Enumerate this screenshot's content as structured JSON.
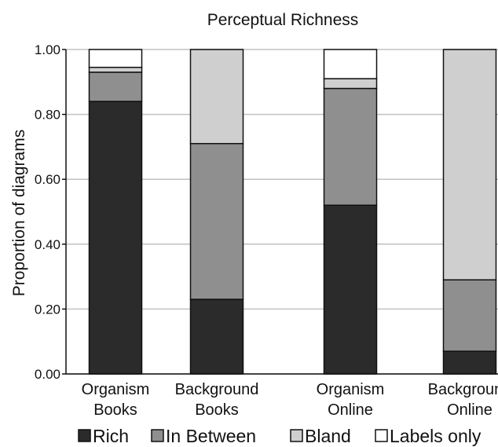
{
  "chart_data": {
    "type": "bar",
    "stacked": true,
    "title": "Perceptual Richness",
    "xlabel": "",
    "ylabel": "Proportion of diagrams",
    "ylim": [
      0,
      1
    ],
    "yticks": [
      "0.00",
      "0.20",
      "0.40",
      "0.60",
      "0.80",
      "1.00"
    ],
    "grid": true,
    "legend_position": "bottom",
    "categories": [
      [
        "Organism",
        "Books"
      ],
      [
        "Background",
        "Books"
      ],
      [
        "Organism",
        "Online"
      ],
      [
        "Background",
        "Online"
      ]
    ],
    "series": [
      {
        "name": "Rich",
        "color": "#2b2b2b",
        "values": [
          0.84,
          0.23,
          0.52,
          0.07
        ]
      },
      {
        "name": "In Between",
        "color": "#8f8f8f",
        "values": [
          0.09,
          0.48,
          0.36,
          0.22
        ]
      },
      {
        "name": "Bland",
        "color": "#cfcfcf",
        "values": [
          0.015,
          0.29,
          0.03,
          0.71
        ]
      },
      {
        "name": "Labels only",
        "color": "#ffffff",
        "values": [
          0.055,
          0.0,
          0.09,
          0.0
        ]
      }
    ]
  }
}
